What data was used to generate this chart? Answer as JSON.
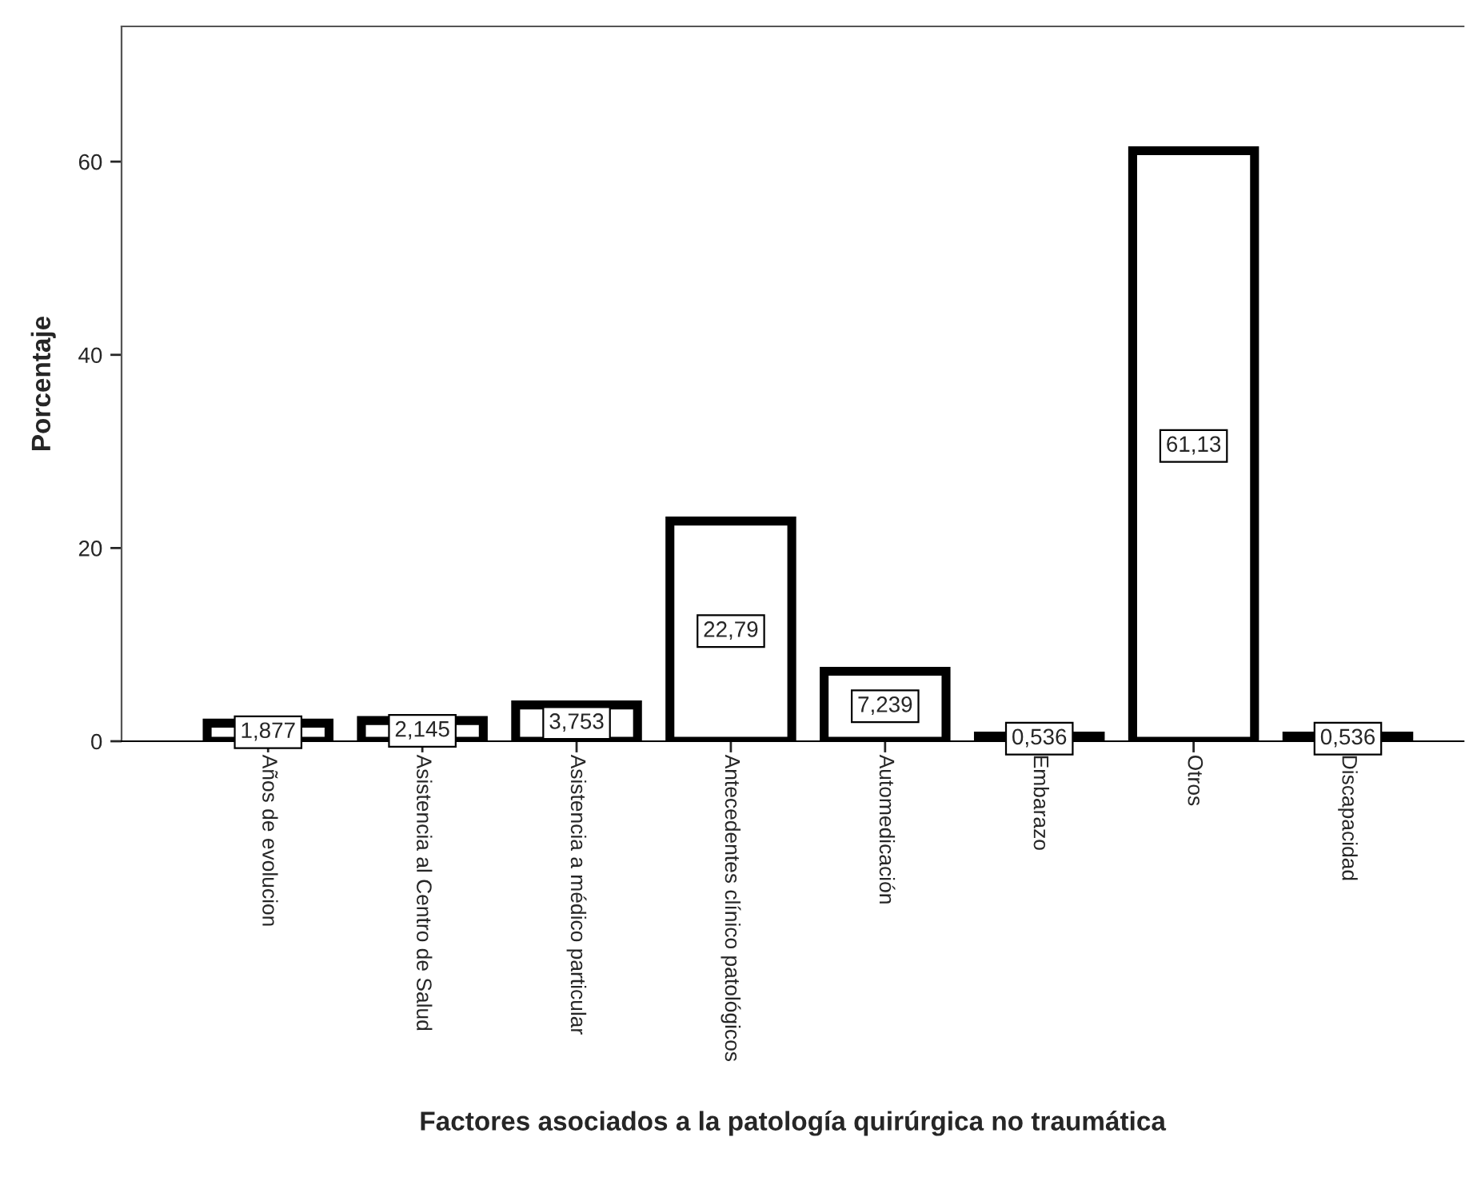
{
  "chart_data": {
    "type": "bar",
    "xlabel": "Factores asociados a la patología quirúrgica no traumática",
    "ylabel": "Porcentaje",
    "categories": [
      "Años de evolucion",
      "Asistencia al Centro de Salud",
      "Asistencia a médico particular",
      "Antecedentes clínico patológicos",
      "Automedicación",
      "Embarazo",
      "Otros",
      "Discapacidad"
    ],
    "values": [
      1.877,
      2.145,
      3.753,
      22.79,
      7.239,
      0.536,
      61.13,
      0.536
    ],
    "value_labels": [
      "1,877",
      "2,145",
      "3,753",
      "22,79",
      "7,239",
      "0,536",
      "61,13",
      "0,536"
    ],
    "color": "#ffffff",
    "ylim": [
      0,
      74
    ],
    "yticks": [
      0,
      20,
      40,
      60
    ],
    "grid": false,
    "legend": false
  }
}
